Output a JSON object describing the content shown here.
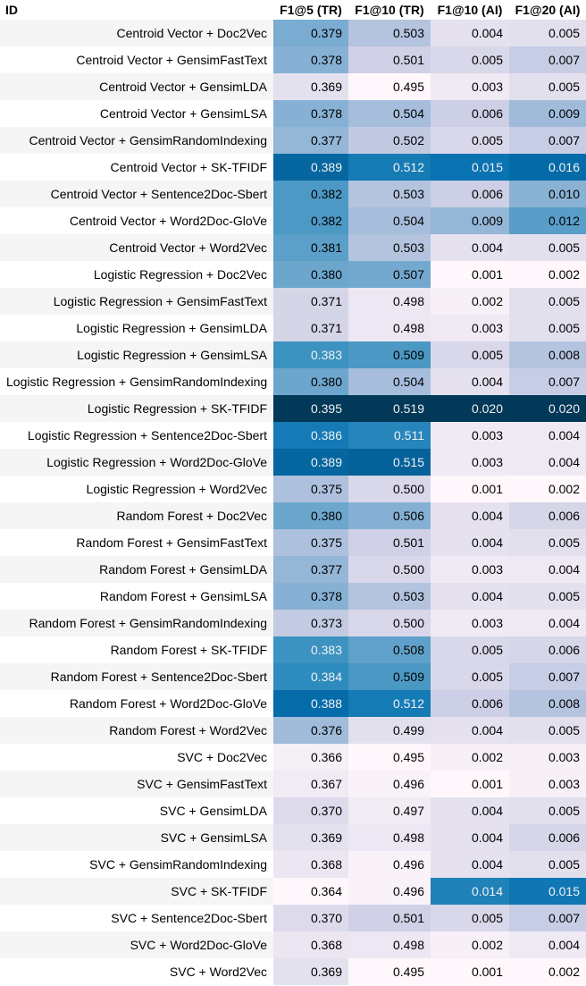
{
  "columns": [
    "ID",
    "F1@5 (TR)",
    "F1@10 (TR)",
    "F1@10 (AI)",
    "F1@20 (AI)"
  ],
  "rows": [
    {
      "id": "Centroid Vector + Doc2Vec",
      "v": [
        "0.379",
        "0.503",
        "0.004",
        "0.005"
      ]
    },
    {
      "id": "Centroid Vector + GensimFastText",
      "v": [
        "0.378",
        "0.501",
        "0.005",
        "0.007"
      ]
    },
    {
      "id": "Centroid Vector + GensimLDA",
      "v": [
        "0.369",
        "0.495",
        "0.003",
        "0.005"
      ]
    },
    {
      "id": "Centroid Vector + GensimLSA",
      "v": [
        "0.378",
        "0.504",
        "0.006",
        "0.009"
      ]
    },
    {
      "id": "Centroid Vector + GensimRandomIndexing",
      "v": [
        "0.377",
        "0.502",
        "0.005",
        "0.007"
      ]
    },
    {
      "id": "Centroid Vector + SK-TFIDF",
      "v": [
        "0.389",
        "0.512",
        "0.015",
        "0.016"
      ]
    },
    {
      "id": "Centroid Vector + Sentence2Doc-Sbert",
      "v": [
        "0.382",
        "0.503",
        "0.006",
        "0.010"
      ]
    },
    {
      "id": "Centroid Vector + Word2Doc-GloVe",
      "v": [
        "0.382",
        "0.504",
        "0.009",
        "0.012"
      ]
    },
    {
      "id": "Centroid Vector + Word2Vec",
      "v": [
        "0.381",
        "0.503",
        "0.004",
        "0.005"
      ]
    },
    {
      "id": "Logistic Regression + Doc2Vec",
      "v": [
        "0.380",
        "0.507",
        "0.001",
        "0.002"
      ]
    },
    {
      "id": "Logistic Regression + GensimFastText",
      "v": [
        "0.371",
        "0.498",
        "0.002",
        "0.005"
      ]
    },
    {
      "id": "Logistic Regression + GensimLDA",
      "v": [
        "0.371",
        "0.498",
        "0.003",
        "0.005"
      ]
    },
    {
      "id": "Logistic Regression + GensimLSA",
      "v": [
        "0.383",
        "0.509",
        "0.005",
        "0.008"
      ]
    },
    {
      "id": "Logistic Regression + GensimRandomIndexing",
      "v": [
        "0.380",
        "0.504",
        "0.004",
        "0.007"
      ]
    },
    {
      "id": "Logistic Regression + SK-TFIDF",
      "v": [
        "0.395",
        "0.519",
        "0.020",
        "0.020"
      ]
    },
    {
      "id": "Logistic Regression + Sentence2Doc-Sbert",
      "v": [
        "0.386",
        "0.511",
        "0.003",
        "0.004"
      ]
    },
    {
      "id": "Logistic Regression + Word2Doc-GloVe",
      "v": [
        "0.389",
        "0.515",
        "0.003",
        "0.004"
      ]
    },
    {
      "id": "Logistic Regression + Word2Vec",
      "v": [
        "0.375",
        "0.500",
        "0.001",
        "0.002"
      ]
    },
    {
      "id": "Random Forest + Doc2Vec",
      "v": [
        "0.380",
        "0.506",
        "0.004",
        "0.006"
      ]
    },
    {
      "id": "Random Forest + GensimFastText",
      "v": [
        "0.375",
        "0.501",
        "0.004",
        "0.005"
      ]
    },
    {
      "id": "Random Forest + GensimLDA",
      "v": [
        "0.377",
        "0.500",
        "0.003",
        "0.004"
      ]
    },
    {
      "id": "Random Forest + GensimLSA",
      "v": [
        "0.378",
        "0.503",
        "0.004",
        "0.005"
      ]
    },
    {
      "id": "Random Forest + GensimRandomIndexing",
      "v": [
        "0.373",
        "0.500",
        "0.003",
        "0.004"
      ]
    },
    {
      "id": "Random Forest + SK-TFIDF",
      "v": [
        "0.383",
        "0.508",
        "0.005",
        "0.006"
      ]
    },
    {
      "id": "Random Forest + Sentence2Doc-Sbert",
      "v": [
        "0.384",
        "0.509",
        "0.005",
        "0.007"
      ]
    },
    {
      "id": "Random Forest + Word2Doc-GloVe",
      "v": [
        "0.388",
        "0.512",
        "0.006",
        "0.008"
      ]
    },
    {
      "id": "Random Forest + Word2Vec",
      "v": [
        "0.376",
        "0.499",
        "0.004",
        "0.005"
      ]
    },
    {
      "id": "SVC + Doc2Vec",
      "v": [
        "0.366",
        "0.495",
        "0.002",
        "0.003"
      ]
    },
    {
      "id": "SVC + GensimFastText",
      "v": [
        "0.367",
        "0.496",
        "0.001",
        "0.003"
      ]
    },
    {
      "id": "SVC + GensimLDA",
      "v": [
        "0.370",
        "0.497",
        "0.004",
        "0.005"
      ]
    },
    {
      "id": "SVC + GensimLSA",
      "v": [
        "0.369",
        "0.498",
        "0.004",
        "0.006"
      ]
    },
    {
      "id": "SVC + GensimRandomIndexing",
      "v": [
        "0.368",
        "0.496",
        "0.004",
        "0.005"
      ]
    },
    {
      "id": "SVC + SK-TFIDF",
      "v": [
        "0.364",
        "0.496",
        "0.014",
        "0.015"
      ]
    },
    {
      "id": "SVC + Sentence2Doc-Sbert",
      "v": [
        "0.370",
        "0.501",
        "0.005",
        "0.007"
      ]
    },
    {
      "id": "SVC + Word2Doc-GloVe",
      "v": [
        "0.368",
        "0.498",
        "0.002",
        "0.004"
      ]
    },
    {
      "id": "SVC + Word2Vec",
      "v": [
        "0.369",
        "0.495",
        "0.001",
        "0.002"
      ]
    }
  ],
  "colormap": {
    "name": "PuBu",
    "stops": [
      "#fff7fb",
      "#ece7f2",
      "#d0d1e6",
      "#a6bddb",
      "#74a9cf",
      "#3690c0",
      "#0570b0",
      "#045a8d",
      "#023858"
    ],
    "scale": "per-column min-max"
  }
}
